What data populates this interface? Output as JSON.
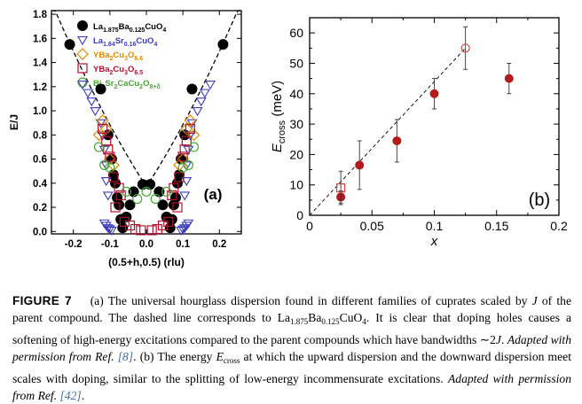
{
  "chart_data": [
    {
      "type": "scatter",
      "panel_label": "(a)",
      "xlabel": "(0.5+h,0.5) (rlu)",
      "ylabel": "E/J",
      "xlim": [
        -0.26,
        0.26
      ],
      "ylim": [
        -0.02,
        1.83
      ],
      "xticks": [
        "-0.2",
        "-0.1",
        "0.0",
        "0.1",
        "0.2"
      ],
      "yticks": [
        "0.0",
        "0.2",
        "0.4",
        "0.6",
        "0.8",
        "1.0",
        "1.2",
        "1.4",
        "1.6",
        "1.8"
      ],
      "legend": [
        {
          "label": "La1.875Ba0.125CuO4",
          "parts": [
            [
              "La",
              ""
            ],
            [
              "1.875",
              "sub"
            ],
            [
              "Ba",
              ""
            ],
            [
              "0.125",
              "sub"
            ],
            [
              "CuO",
              ""
            ],
            [
              "4",
              "sub"
            ]
          ],
          "marker": "filled-circle",
          "color": "#000000"
        },
        {
          "label": "La1.84Sr0.16CuO4",
          "parts": [
            [
              "La",
              ""
            ],
            [
              "1.84",
              "sub"
            ],
            [
              "Sr",
              ""
            ],
            [
              "0.16",
              "sub"
            ],
            [
              "CuO",
              ""
            ],
            [
              "4",
              "sub"
            ]
          ],
          "marker": "triangle-down",
          "color": "#3b3bbd"
        },
        {
          "label": "YBa2Cu3O6.6",
          "parts": [
            [
              "YBa",
              ""
            ],
            [
              "2",
              "sub"
            ],
            [
              "Cu",
              ""
            ],
            [
              "3",
              "sub"
            ],
            [
              "O",
              ""
            ],
            [
              "6.6",
              "sub"
            ]
          ],
          "marker": "diamond",
          "color": "#e08a00"
        },
        {
          "label": "YBa2Cu3O6.5",
          "parts": [
            [
              "YBa",
              ""
            ],
            [
              "2",
              "sub"
            ],
            [
              "Cu",
              ""
            ],
            [
              "3",
              "sub"
            ],
            [
              "O",
              ""
            ],
            [
              "6.5",
              "sub"
            ]
          ],
          "marker": "square",
          "color": "#b5122e"
        },
        {
          "label": "Bi2Sr2CaCu2O8+δ",
          "parts": [
            [
              "Bi",
              ""
            ],
            [
              "2",
              "sub"
            ],
            [
              "Sr",
              ""
            ],
            [
              "2",
              "sub"
            ],
            [
              "CaCu",
              ""
            ],
            [
              "2",
              "sub"
            ],
            [
              "O",
              ""
            ],
            [
              "8+δ",
              "sub"
            ]
          ],
          "marker": "circle",
          "color": "#44a832"
        }
      ],
      "series": [
        {
          "name": "La1.875Ba0.125CuO4",
          "x": [
            -0.21,
            -0.125,
            -0.105,
            -0.095,
            -0.09,
            -0.085,
            -0.08,
            -0.075,
            -0.07,
            -0.065,
            -0.055,
            -0.045,
            -0.035,
            -0.01,
            0.01,
            0.035,
            0.045,
            0.055,
            0.065,
            0.07,
            0.075,
            0.08,
            0.085,
            0.09,
            0.095,
            0.105,
            0.125,
            0.21
          ],
          "y": [
            1.55,
            1.18,
            0.8,
            0.6,
            0.47,
            0.4,
            0.28,
            0.22,
            0.1,
            0.03,
            0.12,
            0.22,
            0.33,
            0.39,
            0.39,
            0.33,
            0.22,
            0.12,
            0.03,
            0.1,
            0.22,
            0.28,
            0.4,
            0.47,
            0.6,
            0.8,
            1.18,
            1.55
          ]
        },
        {
          "name": "La1.84Sr0.16CuO4",
          "x": [
            -0.175,
            -0.16,
            -0.15,
            -0.14,
            -0.125,
            -0.12,
            -0.115,
            -0.11,
            -0.11,
            -0.105,
            -0.115,
            -0.11,
            -0.105,
            -0.1,
            -0.095,
            0.095,
            0.1,
            0.105,
            0.11,
            0.115,
            0.105,
            0.11,
            0.11,
            0.115,
            0.12,
            0.125,
            0.14,
            0.15,
            0.16,
            0.175
          ],
          "y": [
            1.22,
            1.15,
            1.08,
            1.0,
            0.9,
            0.8,
            0.68,
            0.55,
            0.42,
            0.3,
            0.07,
            0.05,
            0.03,
            0.02,
            0.01,
            0.01,
            0.02,
            0.03,
            0.05,
            0.07,
            0.3,
            0.42,
            0.55,
            0.68,
            0.8,
            0.9,
            1.0,
            1.08,
            1.15,
            1.22
          ]
        },
        {
          "name": "YBa2Cu3O6.6",
          "x": [
            -0.12,
            -0.11,
            -0.13,
            -0.1,
            -0.09,
            0.09,
            0.1,
            0.13,
            0.11,
            0.12
          ],
          "y": [
            0.92,
            0.85,
            0.8,
            0.6,
            0.55,
            0.55,
            0.6,
            0.8,
            0.85,
            0.92
          ]
        },
        {
          "name": "YBa2Cu3O6.5",
          "x": [
            -0.12,
            -0.11,
            -0.105,
            -0.1,
            -0.09,
            -0.075,
            -0.07,
            -0.085,
            -0.06,
            -0.045,
            -0.03,
            -0.015,
            0.015,
            0.03,
            0.045,
            0.06,
            0.085,
            0.07,
            0.075,
            0.09,
            0.1,
            0.105,
            0.11,
            0.12
          ],
          "y": [
            0.85,
            0.75,
            0.68,
            0.62,
            0.45,
            0.36,
            0.3,
            0.2,
            0.08,
            0.05,
            0.02,
            0.01,
            0.01,
            0.02,
            0.05,
            0.08,
            0.2,
            0.3,
            0.36,
            0.45,
            0.62,
            0.68,
            0.75,
            0.85
          ]
        },
        {
          "name": "Bi2Sr2CaCu2O8+δ",
          "x": [
            -0.13,
            -0.115,
            -0.1,
            -0.055,
            -0.025,
            0.0,
            0.025,
            0.055,
            0.1,
            0.115,
            0.13
          ],
          "y": [
            0.7,
            0.55,
            0.53,
            0.33,
            0.27,
            0.33,
            0.27,
            0.33,
            0.53,
            0.55,
            0.7
          ]
        }
      ],
      "annotation": "dashed curve: La1.875Ba0.125CuO4 dispersion"
    },
    {
      "type": "scatter",
      "panel_label": "(b)",
      "xlabel": "x",
      "ylabel": "Ecross (meV)",
      "xlim": [
        0,
        0.2
      ],
      "ylim": [
        0,
        65
      ],
      "xticks": [
        "0",
        "0.05",
        "0.1",
        "0.15",
        "0.2"
      ],
      "yticks": [
        "0",
        "10",
        "20",
        "30",
        "40",
        "50",
        "60"
      ],
      "series": [
        {
          "name": "",
          "marker": "filled-circle",
          "color": "#b31b1b",
          "x": [
            0.025,
            0.04,
            0.07,
            0.1,
            0.16
          ],
          "y": [
            6,
            16.5,
            24.5,
            40,
            45
          ],
          "err": [
            2,
            8,
            7,
            5,
            5
          ]
        },
        {
          "name": "",
          "marker": "open-square",
          "color": "#d2453a",
          "x": [
            0.025
          ],
          "y": [
            9
          ],
          "err": [
            5.5
          ]
        },
        {
          "name": "",
          "marker": "open-circle",
          "color": "#d2453a",
          "x": [
            0.125
          ],
          "y": [
            55
          ],
          "err": [
            7
          ]
        }
      ],
      "fit_line": {
        "x": [
          0,
          0.125
        ],
        "y": [
          0,
          55
        ]
      }
    }
  ],
  "caption": {
    "label": "FIGURE 7",
    "p1": "(a) The universal hourglass dispersion found in different families of cuprates scaled by ",
    "J": "J",
    "p2": " of the parent compound. The dashed line corresponds to La",
    "s1": "1.875",
    "p3": "Ba",
    "s2": "0.125",
    "p4": "CuO",
    "s3": "4",
    "p5": ". It is clear that doping holes causes a softening of high-energy excitations compared to the parent compounds which have bandwidths ∼2",
    "J2": "J",
    "p6": ". ",
    "adapt1": "Adapted with permission from Ref. ",
    "ref1": "[8]",
    "p7": ". (b) The energy ",
    "E": "E",
    "Esub": "cross",
    "p8": " at which the upward dispersion and the downward dispersion meet scales with doping, similar to the splitting of low-energy incommensurate excitations. ",
    "adapt2": "Adapted with permission from Ref. ",
    "ref2": "[42]",
    "p9": "."
  }
}
